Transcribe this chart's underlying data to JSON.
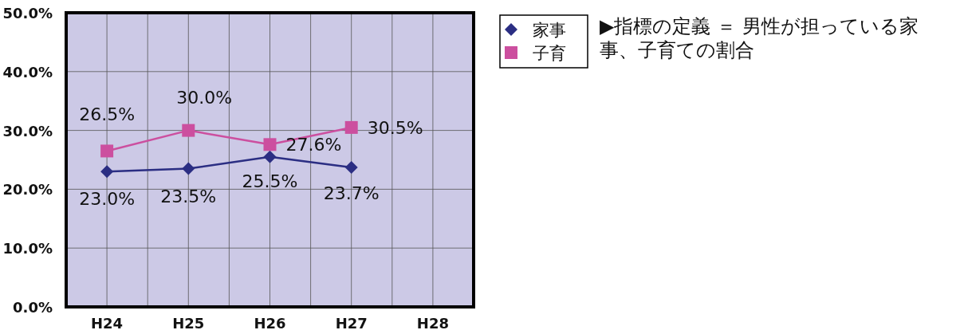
{
  "chart_data": {
    "type": "line",
    "categories": [
      "H24",
      "H25",
      "H26",
      "H27",
      "H28"
    ],
    "series": [
      {
        "name": "家事",
        "color": "#2b2e83",
        "marker": "diamond",
        "values": [
          23.0,
          23.5,
          25.5,
          23.7,
          null
        ],
        "value_labels": [
          "23.0%",
          "23.5%",
          "25.5%",
          "23.7%",
          null
        ]
      },
      {
        "name": "子育",
        "color": "#cc4f9f",
        "marker": "square",
        "values": [
          26.5,
          30.0,
          27.6,
          30.5,
          null
        ],
        "value_labels": [
          "26.5%",
          "30.0%",
          "27.6%",
          "30.5%",
          null
        ]
      }
    ],
    "ylim": [
      0,
      50
    ],
    "yticks": [
      {
        "value": 0,
        "label": "0.0%"
      },
      {
        "value": 10,
        "label": "10.0%"
      },
      {
        "value": 20,
        "label": "20.0%"
      },
      {
        "value": 30,
        "label": "30.0%"
      },
      {
        "value": 40,
        "label": "40.0%"
      },
      {
        "value": 50,
        "label": "50.0%"
      }
    ],
    "grid": true,
    "legend": "right",
    "annotations": [
      "▶指標の定義 ＝ 男性が担っている家事、子育ての割合"
    ]
  }
}
